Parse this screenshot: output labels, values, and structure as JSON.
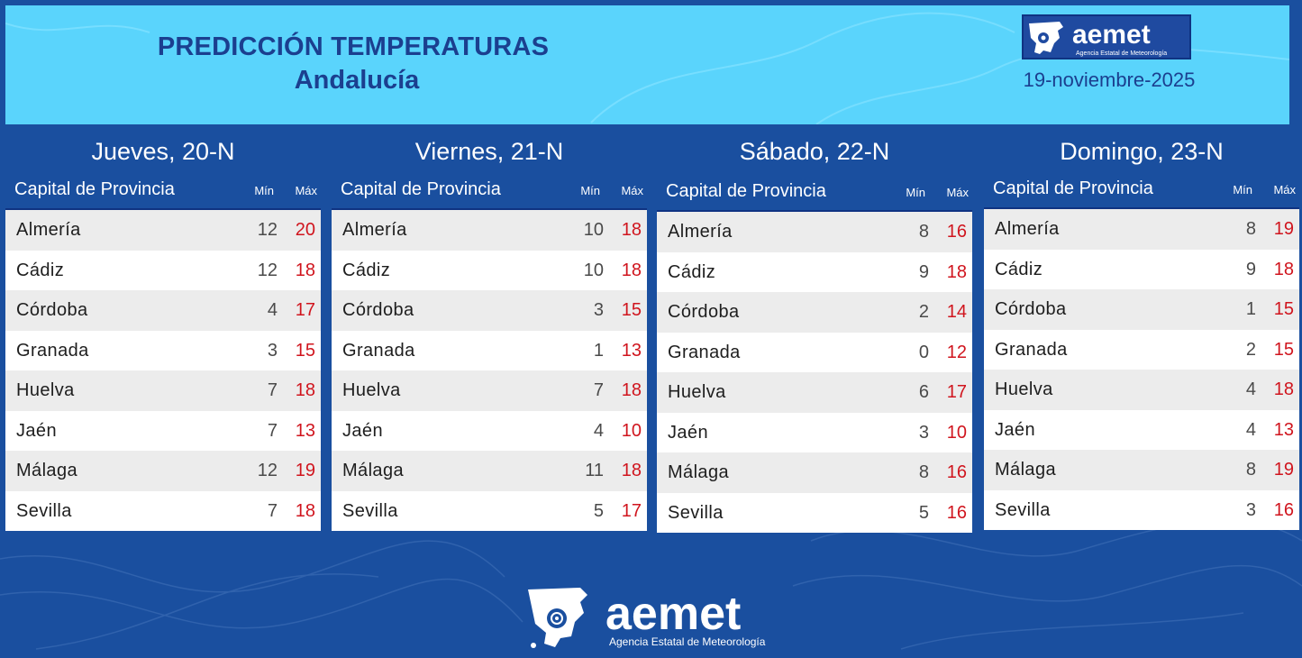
{
  "header": {
    "title": "PREDICCIÓN TEMPERATURAS",
    "subtitle": "Andalucía",
    "date": "19-noviembre-2025"
  },
  "logo": {
    "name": "aemet",
    "tagline": "Agencia Estatal de Meteorología"
  },
  "columns": {
    "capital": "Capital de Provincia",
    "min": "Mín",
    "max": "Máx"
  },
  "colors": {
    "background": "#1a4f9f",
    "header_bg": "#5ad4fc",
    "title": "#1b3f8f",
    "max_temp": "#d0151e"
  },
  "days": [
    {
      "title": "Jueves, 20-N",
      "rows": [
        {
          "city": "Almería",
          "min": "12",
          "max": "20"
        },
        {
          "city": "Cádiz",
          "min": "12",
          "max": "18"
        },
        {
          "city": "Córdoba",
          "min": "4",
          "max": "17"
        },
        {
          "city": "Granada",
          "min": "3",
          "max": "15"
        },
        {
          "city": "Huelva",
          "min": "7",
          "max": "18"
        },
        {
          "city": "Jaén",
          "min": "7",
          "max": "13"
        },
        {
          "city": "Málaga",
          "min": "12",
          "max": "19"
        },
        {
          "city": "Sevilla",
          "min": "7",
          "max": "18"
        }
      ]
    },
    {
      "title": "Viernes, 21-N",
      "rows": [
        {
          "city": "Almería",
          "min": "10",
          "max": "18"
        },
        {
          "city": "Cádiz",
          "min": "10",
          "max": "18"
        },
        {
          "city": "Córdoba",
          "min": "3",
          "max": "15"
        },
        {
          "city": "Granada",
          "min": "1",
          "max": "13"
        },
        {
          "city": "Huelva",
          "min": "7",
          "max": "18"
        },
        {
          "city": "Jaén",
          "min": "4",
          "max": "10"
        },
        {
          "city": "Málaga",
          "min": "11",
          "max": "18"
        },
        {
          "city": "Sevilla",
          "min": "5",
          "max": "17"
        }
      ]
    },
    {
      "title": "Sábado, 22-N",
      "rows": [
        {
          "city": "Almería",
          "min": "8",
          "max": "16"
        },
        {
          "city": "Cádiz",
          "min": "9",
          "max": "18"
        },
        {
          "city": "Córdoba",
          "min": "2",
          "max": "14"
        },
        {
          "city": "Granada",
          "min": "0",
          "max": "12"
        },
        {
          "city": "Huelva",
          "min": "6",
          "max": "17"
        },
        {
          "city": "Jaén",
          "min": "3",
          "max": "10"
        },
        {
          "city": "Málaga",
          "min": "8",
          "max": "16"
        },
        {
          "city": "Sevilla",
          "min": "5",
          "max": "16"
        }
      ]
    },
    {
      "title": "Domingo, 23-N",
      "rows": [
        {
          "city": "Almería",
          "min": "8",
          "max": "19"
        },
        {
          "city": "Cádiz",
          "min": "9",
          "max": "18"
        },
        {
          "city": "Córdoba",
          "min": "1",
          "max": "15"
        },
        {
          "city": "Granada",
          "min": "2",
          "max": "15"
        },
        {
          "city": "Huelva",
          "min": "4",
          "max": "18"
        },
        {
          "city": "Jaén",
          "min": "4",
          "max": "13"
        },
        {
          "city": "Málaga",
          "min": "8",
          "max": "19"
        },
        {
          "city": "Sevilla",
          "min": "3",
          "max": "16"
        }
      ]
    }
  ]
}
